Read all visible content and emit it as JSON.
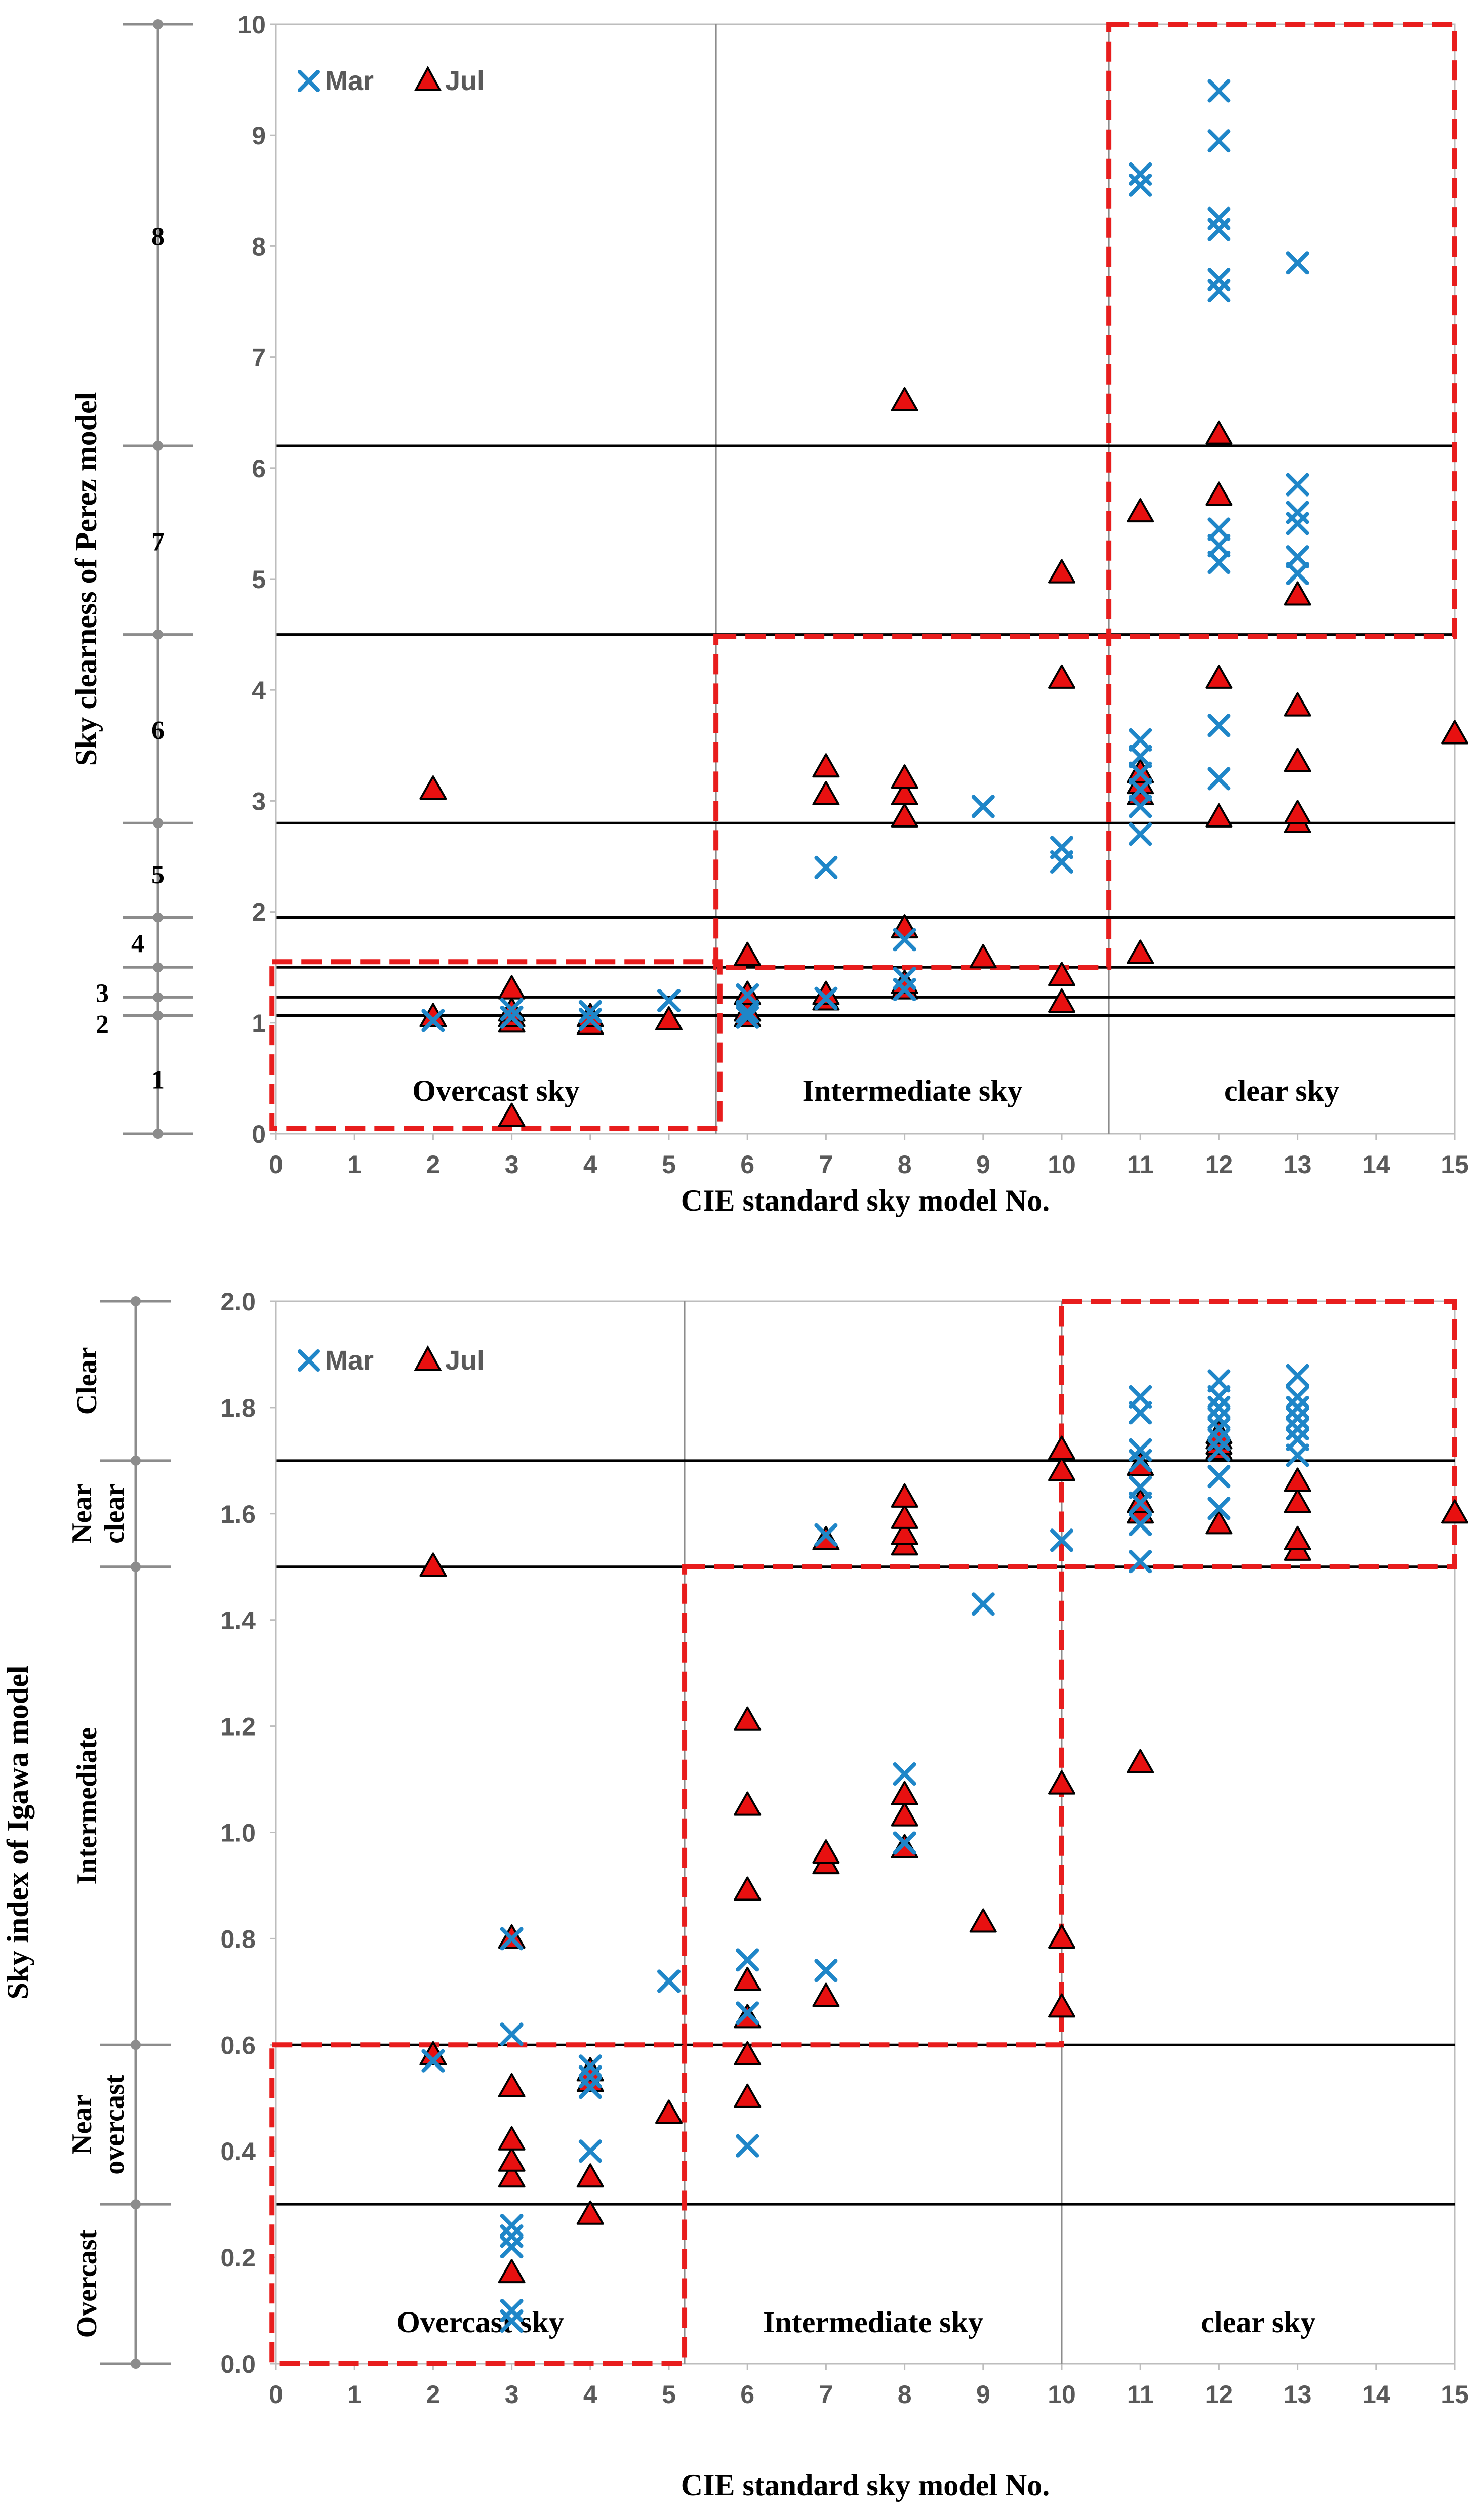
{
  "colors": {
    "mar": "#1f86c8",
    "jul_fill": "#e81010",
    "box": "#e81d1d",
    "line": "#000000",
    "gray": "#8c8c8c"
  },
  "chart_data": [
    {
      "type": "scatter",
      "xlabel": "CIE standard sky model No.",
      "ylabel": "Sky clearness of Perez model",
      "xlim": [
        0,
        15
      ],
      "ylim": [
        0,
        10
      ],
      "x_ticks": [
        "0",
        "1",
        "2",
        "3",
        "4",
        "5",
        "6",
        "7",
        "8",
        "9",
        "10",
        "11",
        "12",
        "13",
        "14",
        "15"
      ],
      "y_ticks": [
        "0",
        "1",
        "2",
        "3",
        "4",
        "5",
        "6",
        "7",
        "8",
        "9",
        "10"
      ],
      "legend": {
        "position": "top-left",
        "mar": "Mar",
        "jul": "Jul"
      },
      "region_labels": [
        "Overcast sky",
        "Intermediate sky",
        "clear sky"
      ],
      "category_labels": [
        "1",
        "2",
        "3",
        "4",
        "5",
        "6",
        "7",
        "8"
      ],
      "thresholds": [
        1.065,
        1.23,
        1.5,
        1.95,
        2.8,
        4.5,
        6.2
      ],
      "bracket_points": [
        0,
        1.065,
        1.23,
        1.5,
        1.95,
        2.8,
        4.5,
        6.2,
        10
      ],
      "boxes": [
        {
          "x": [
            -0.05,
            5.65
          ],
          "y": [
            0.05,
            1.55
          ]
        },
        {
          "x": [
            5.6,
            10.6
          ],
          "y": [
            1.5,
            4.48
          ]
        },
        {
          "x": [
            10.6,
            15.0
          ],
          "y": [
            4.48,
            10.0
          ]
        }
      ],
      "vertical_dividers": [
        5.6,
        10.6
      ],
      "series": [
        {
          "name": "Mar",
          "marker": "x",
          "points": [
            [
              2,
              1.02
            ],
            [
              3,
              1.05
            ],
            [
              3,
              1.12
            ],
            [
              4,
              1.03
            ],
            [
              4,
              1.1
            ],
            [
              5,
              1.2
            ],
            [
              6,
              1.05
            ],
            [
              6,
              1.1
            ],
            [
              6,
              1.25
            ],
            [
              7,
              1.22
            ],
            [
              7,
              2.4
            ],
            [
              8,
              1.3
            ],
            [
              8,
              1.4
            ],
            [
              8,
              1.75
            ],
            [
              9,
              2.95
            ],
            [
              10,
              2.45
            ],
            [
              10,
              2.58
            ],
            [
              11,
              2.7
            ],
            [
              11,
              2.95
            ],
            [
              11,
              3.1
            ],
            [
              11,
              3.25
            ],
            [
              11,
              3.4
            ],
            [
              11,
              3.55
            ],
            [
              11,
              8.55
            ],
            [
              11,
              8.65
            ],
            [
              12,
              3.2
            ],
            [
              12,
              3.68
            ],
            [
              12,
              5.15
            ],
            [
              12,
              5.3
            ],
            [
              12,
              5.45
            ],
            [
              12,
              7.6
            ],
            [
              12,
              7.7
            ],
            [
              12,
              8.15
            ],
            [
              12,
              8.25
            ],
            [
              12,
              8.95
            ],
            [
              12,
              9.4
            ],
            [
              13,
              5.05
            ],
            [
              13,
              5.2
            ],
            [
              13,
              5.5
            ],
            [
              13,
              5.6
            ],
            [
              13,
              5.85
            ],
            [
              13,
              7.85
            ]
          ]
        },
        {
          "name": "Jul",
          "marker": "triangle",
          "points": [
            [
              2,
              1.05
            ],
            [
              2,
              3.1
            ],
            [
              3,
              0.15
            ],
            [
              3,
              1.0
            ],
            [
              3,
              1.05
            ],
            [
              3,
              1.1
            ],
            [
              3,
              1.3
            ],
            [
              4,
              0.98
            ],
            [
              4,
              1.05
            ],
            [
              5,
              1.02
            ],
            [
              6,
              1.05
            ],
            [
              6,
              1.1
            ],
            [
              6,
              1.25
            ],
            [
              6,
              1.6
            ],
            [
              7,
              1.2
            ],
            [
              7,
              1.25
            ],
            [
              7,
              3.05
            ],
            [
              7,
              3.3
            ],
            [
              8,
              1.3
            ],
            [
              8,
              1.35
            ],
            [
              8,
              1.85
            ],
            [
              8,
              2.85
            ],
            [
              8,
              3.05
            ],
            [
              8,
              3.2
            ],
            [
              8,
              6.6
            ],
            [
              9,
              1.58
            ],
            [
              10,
              1.18
            ],
            [
              10,
              1.42
            ],
            [
              10,
              4.1
            ],
            [
              10,
              5.05
            ],
            [
              11,
              1.62
            ],
            [
              11,
              3.05
            ],
            [
              11,
              3.15
            ],
            [
              11,
              3.25
            ],
            [
              11,
              5.6
            ],
            [
              12,
              2.85
            ],
            [
              12,
              4.1
            ],
            [
              12,
              5.75
            ],
            [
              12,
              6.3
            ],
            [
              13,
              2.8
            ],
            [
              13,
              2.88
            ],
            [
              13,
              3.35
            ],
            [
              13,
              3.85
            ],
            [
              13,
              4.85
            ],
            [
              15,
              3.6
            ]
          ]
        }
      ]
    },
    {
      "type": "scatter",
      "xlabel": "CIE standard sky model No.",
      "ylabel": "Sky index of Igawa model",
      "xlim": [
        0,
        15
      ],
      "ylim": [
        0,
        2
      ],
      "x_ticks": [
        "0",
        "1",
        "2",
        "3",
        "4",
        "5",
        "6",
        "7",
        "8",
        "9",
        "10",
        "11",
        "12",
        "13",
        "14",
        "15"
      ],
      "y_ticks": [
        "0.0",
        "0.2",
        "0.4",
        "0.6",
        "0.8",
        "1.0",
        "1.2",
        "1.4",
        "1.6",
        "1.8",
        "2.0"
      ],
      "legend": {
        "position": "top-left",
        "mar": "Mar",
        "jul": "Jul"
      },
      "region_labels": [
        "Overcast sky",
        "Intermediate sky",
        "clear sky"
      ],
      "category_labels": [
        "Clear",
        "Near clear",
        "Intermediate",
        "Near overcast",
        "Overcast"
      ],
      "thresholds": [
        0.3,
        0.6,
        1.5,
        1.7
      ],
      "bracket_points": [
        0,
        0.3,
        0.6,
        1.5,
        1.7,
        2.0
      ],
      "boxes": [
        {
          "x": [
            -0.05,
            5.2
          ],
          "y": [
            0.0,
            0.6
          ]
        },
        {
          "x": [
            5.2,
            10.0
          ],
          "y": [
            0.6,
            1.5
          ]
        },
        {
          "x": [
            10.0,
            15.0
          ],
          "y": [
            1.5,
            2.0
          ]
        }
      ],
      "vertical_dividers": [
        5.2,
        10.0
      ],
      "series": [
        {
          "name": "Mar",
          "marker": "x",
          "points": [
            [
              2,
              0.57
            ],
            [
              3,
              0.08
            ],
            [
              3,
              0.1
            ],
            [
              3,
              0.22
            ],
            [
              3,
              0.24
            ],
            [
              3,
              0.26
            ],
            [
              3,
              0.62
            ],
            [
              3,
              0.8
            ],
            [
              4,
              0.4
            ],
            [
              4,
              0.52
            ],
            [
              4,
              0.54
            ],
            [
              4,
              0.56
            ],
            [
              5,
              0.72
            ],
            [
              6,
              0.41
            ],
            [
              6,
              0.66
            ],
            [
              6,
              0.76
            ],
            [
              7,
              0.74
            ],
            [
              7,
              1.56
            ],
            [
              8,
              0.98
            ],
            [
              8,
              1.11
            ],
            [
              9,
              1.43
            ],
            [
              10,
              1.55
            ],
            [
              11,
              1.51
            ],
            [
              11,
              1.58
            ],
            [
              11,
              1.62
            ],
            [
              11,
              1.65
            ],
            [
              11,
              1.7
            ],
            [
              11,
              1.72
            ],
            [
              11,
              1.79
            ],
            [
              11,
              1.82
            ],
            [
              12,
              1.61
            ],
            [
              12,
              1.67
            ],
            [
              12,
              1.72
            ],
            [
              12,
              1.74
            ],
            [
              12,
              1.76
            ],
            [
              12,
              1.78
            ],
            [
              12,
              1.8
            ],
            [
              12,
              1.82
            ],
            [
              12,
              1.85
            ],
            [
              13,
              1.71
            ],
            [
              13,
              1.74
            ],
            [
              13,
              1.76
            ],
            [
              13,
              1.78
            ],
            [
              13,
              1.8
            ],
            [
              13,
              1.82
            ],
            [
              13,
              1.86
            ]
          ]
        },
        {
          "name": "Jul",
          "marker": "triangle",
          "points": [
            [
              2,
              0.58
            ],
            [
              2,
              1.5
            ],
            [
              3,
              0.17
            ],
            [
              3,
              0.35
            ],
            [
              3,
              0.38
            ],
            [
              3,
              0.42
            ],
            [
              3,
              0.52
            ],
            [
              3,
              0.8
            ],
            [
              4,
              0.28
            ],
            [
              4,
              0.35
            ],
            [
              4,
              0.53
            ],
            [
              4,
              0.55
            ],
            [
              5,
              0.47
            ],
            [
              6,
              0.5
            ],
            [
              6,
              0.58
            ],
            [
              6,
              0.65
            ],
            [
              6,
              0.72
            ],
            [
              6,
              0.89
            ],
            [
              6,
              1.05
            ],
            [
              6,
              1.21
            ],
            [
              7,
              0.69
            ],
            [
              7,
              0.94
            ],
            [
              7,
              0.96
            ],
            [
              7,
              1.55
            ],
            [
              8,
              0.97
            ],
            [
              8,
              1.03
            ],
            [
              8,
              1.07
            ],
            [
              8,
              1.54
            ],
            [
              8,
              1.56
            ],
            [
              8,
              1.59
            ],
            [
              8,
              1.63
            ],
            [
              9,
              0.83
            ],
            [
              10,
              0.67
            ],
            [
              10,
              0.8
            ],
            [
              10,
              1.09
            ],
            [
              10,
              1.68
            ],
            [
              10,
              1.72
            ],
            [
              11,
              1.13
            ],
            [
              11,
              1.6
            ],
            [
              11,
              1.62
            ],
            [
              11,
              1.69
            ],
            [
              12,
              1.58
            ],
            [
              12,
              1.72
            ],
            [
              12,
              1.73
            ],
            [
              12,
              1.74
            ],
            [
              12,
              1.75
            ],
            [
              13,
              1.53
            ],
            [
              13,
              1.55
            ],
            [
              13,
              1.62
            ],
            [
              13,
              1.66
            ],
            [
              15,
              1.6
            ]
          ]
        }
      ]
    }
  ]
}
